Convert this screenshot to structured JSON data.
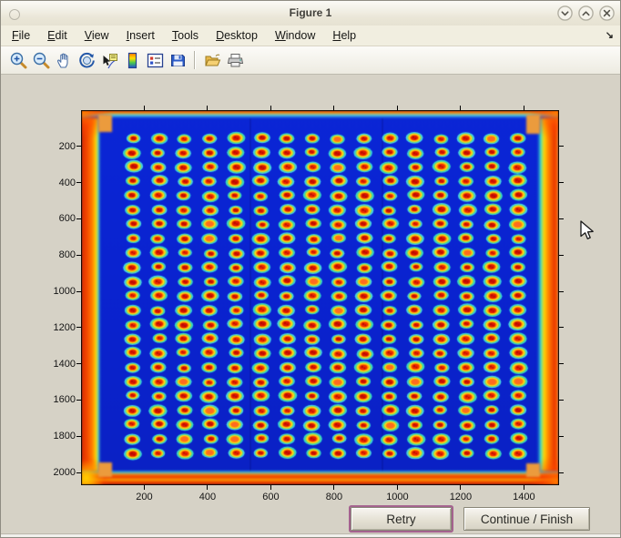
{
  "window": {
    "title": "Figure 1",
    "controls": [
      {
        "name": "minimize-button"
      },
      {
        "name": "maximize-button"
      },
      {
        "name": "close-button"
      }
    ]
  },
  "menu": {
    "items": [
      {
        "label": "File",
        "underline": 0
      },
      {
        "label": "Edit",
        "underline": 0
      },
      {
        "label": "View",
        "underline": 0
      },
      {
        "label": "Insert",
        "underline": 0
      },
      {
        "label": "Tools",
        "underline": 0
      },
      {
        "label": "Desktop",
        "underline": 0
      },
      {
        "label": "Window",
        "underline": 0
      },
      {
        "label": "Help",
        "underline": 0
      }
    ],
    "dock_arrow": "↘"
  },
  "toolbar": {
    "icons": [
      "zoom-in-icon",
      "zoom-out-icon",
      "pan-icon",
      "rotate-3d-icon",
      "data-cursor-icon",
      "colorbar-icon",
      "insert-legend-icon",
      "save-icon",
      "open-icon",
      "print-icon"
    ]
  },
  "plot": {
    "type": "heatmap-image",
    "description": "Jet-colormap thermal/intensity image of a microplate: dark blue field, grid of spots with red cores, yellow-orange rings and cyan halos, red-orange glowing borders on all four edges",
    "x_ticks": [
      200,
      400,
      600,
      800,
      1000,
      1200,
      1400
    ],
    "y_ticks": [
      200,
      400,
      600,
      800,
      1000,
      1200,
      1400,
      1600,
      1800,
      2000
    ],
    "x_range": [
      0,
      1511
    ],
    "y_range": [
      0,
      2070
    ],
    "grid": {
      "rows": 23,
      "cols": 16
    },
    "colors": {
      "field_blue": "#0a23cf",
      "halo_cyan": "#35cbdc",
      "ring_green": "#86dd55",
      "ring_yellow": "#ffd81e",
      "ring_orange": "#ff9100",
      "core_red": "#e31a00",
      "core_dark": "#a80a00",
      "border_red": "#d42b00",
      "border_orange": "#ff7a00",
      "border_yellow": "#ffd400",
      "tab_orange": "#eb9b3d"
    }
  },
  "buttons": {
    "retry": "Retry",
    "continue": "Continue / Finish"
  }
}
